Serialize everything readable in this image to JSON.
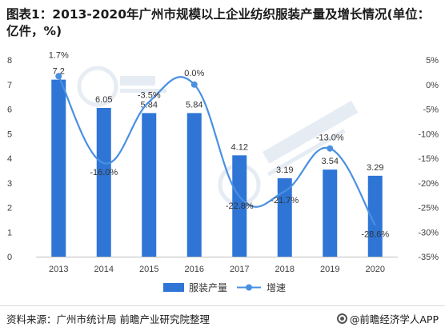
{
  "title": "图表1：2013-2020年广州市规模以上企业纺织服装产量及增长情况(单位：亿件，%)",
  "source": "资料来源：广州市统计局 前瞻产业研究院整理",
  "brand": "@前瞻经济学人APP",
  "colors": {
    "bar": "#2E75D6",
    "line": "#4A90E2",
    "axis_text": "#404040"
  },
  "chart_data": {
    "type": "bar",
    "categories": [
      "2013",
      "2014",
      "2015",
      "2016",
      "2017",
      "2018",
      "2019",
      "2020"
    ],
    "series": [
      {
        "name": "服装产量",
        "type": "bar",
        "axis": "left",
        "values": [
          7.2,
          6.05,
          5.84,
          5.84,
          4.12,
          3.19,
          3.54,
          3.29
        ],
        "labels": [
          "7.2",
          "6.05",
          "5.84",
          "5.84",
          "4.12",
          "3.19",
          "3.54",
          "3.29"
        ]
      },
      {
        "name": "增速",
        "type": "line",
        "axis": "right",
        "values": [
          1.7,
          -16.0,
          -3.5,
          0.0,
          -22.8,
          -21.7,
          -13.0,
          -28.6
        ],
        "labels": [
          "1.7%",
          "-16.0%",
          "-3.5%",
          "0.0%",
          "-22.8%",
          "-21.7%",
          "-13.0%",
          "-28.6%"
        ]
      }
    ],
    "y_left": {
      "min": 0,
      "max": 8,
      "ticks": [
        "0",
        "1",
        "2",
        "3",
        "4",
        "5",
        "6",
        "7",
        "8"
      ]
    },
    "y_right": {
      "min": -35,
      "max": 5,
      "ticks": [
        "-35%",
        "-30%",
        "-25%",
        "-20%",
        "-15%",
        "-10%",
        "-5%",
        "0%",
        "5%"
      ]
    },
    "legend_position": "bottom-center",
    "grid": false
  }
}
